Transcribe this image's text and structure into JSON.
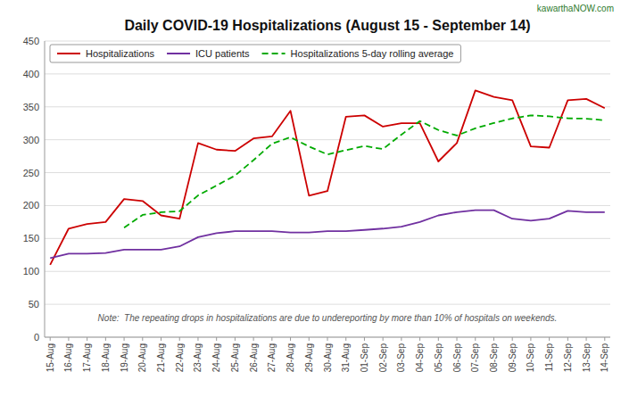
{
  "chart_data": {
    "type": "line",
    "title": "Daily COVID-19 Hospitalizations (August 15 - September 14)",
    "annotations": [
      "Note:  The repeating drops in hospitalizations are due to undereporting by more than 10% of hospitals on weekends.",
      "kawarthaNOW.com"
    ],
    "categories": [
      "15-Aug",
      "16-Aug",
      "17-Aug",
      "18-Aug",
      "19-Aug",
      "20-Aug",
      "21-Aug",
      "22-Aug",
      "23-Aug",
      "24-Aug",
      "25-Aug",
      "26-Aug",
      "27-Aug",
      "28-Aug",
      "29-Aug",
      "30-Aug",
      "31-Aug",
      "01-Sep",
      "02-Sep",
      "03-Sep",
      "04-Sep",
      "05-Sep",
      "06-Sep",
      "07-Sep",
      "08-Sep",
      "09-Sep",
      "10-Sep",
      "11-Sep",
      "12-Sep",
      "13-Sep",
      "14-Sep"
    ],
    "series": [
      {
        "name": "Hospitalizations",
        "color": "#cc0000",
        "line_style": "solid",
        "values": [
          110,
          165,
          172,
          175,
          210,
          207,
          185,
          180,
          295,
          285,
          283,
          302,
          305,
          344,
          215,
          222,
          335,
          337,
          320,
          325,
          325,
          267,
          295,
          375,
          365,
          360,
          290,
          288,
          360,
          362,
          348
        ]
      },
      {
        "name": "ICU patients",
        "color": "#7030a0",
        "line_style": "solid",
        "values": [
          120,
          127,
          127,
          128,
          133,
          133,
          133,
          138,
          152,
          158,
          161,
          161,
          161,
          159,
          159,
          161,
          161,
          163,
          165,
          168,
          175,
          185,
          190,
          193,
          193,
          180,
          177,
          180,
          192,
          190,
          190
        ]
      },
      {
        "name": "Hospitalizations 5-day rolling average",
        "color": "#00aa00",
        "line_style": "dashed",
        "values": [
          null,
          null,
          null,
          null,
          166.4,
          185.8,
          189.8,
          191.4,
          215.4,
          230.4,
          245.6,
          269,
          294,
          303.8,
          289.8,
          277.6,
          284.2,
          290.6,
          285.8,
          307.8,
          328.4,
          314.8,
          306.4,
          317.4,
          325.4,
          332.4,
          337,
          335.6,
          332.6,
          332,
          329.6
        ]
      }
    ],
    "ylim": [
      0,
      450
    ],
    "yticks": [
      0,
      50,
      100,
      150,
      200,
      250,
      300,
      350,
      400,
      450
    ],
    "grid": true,
    "legend": "upper left"
  }
}
